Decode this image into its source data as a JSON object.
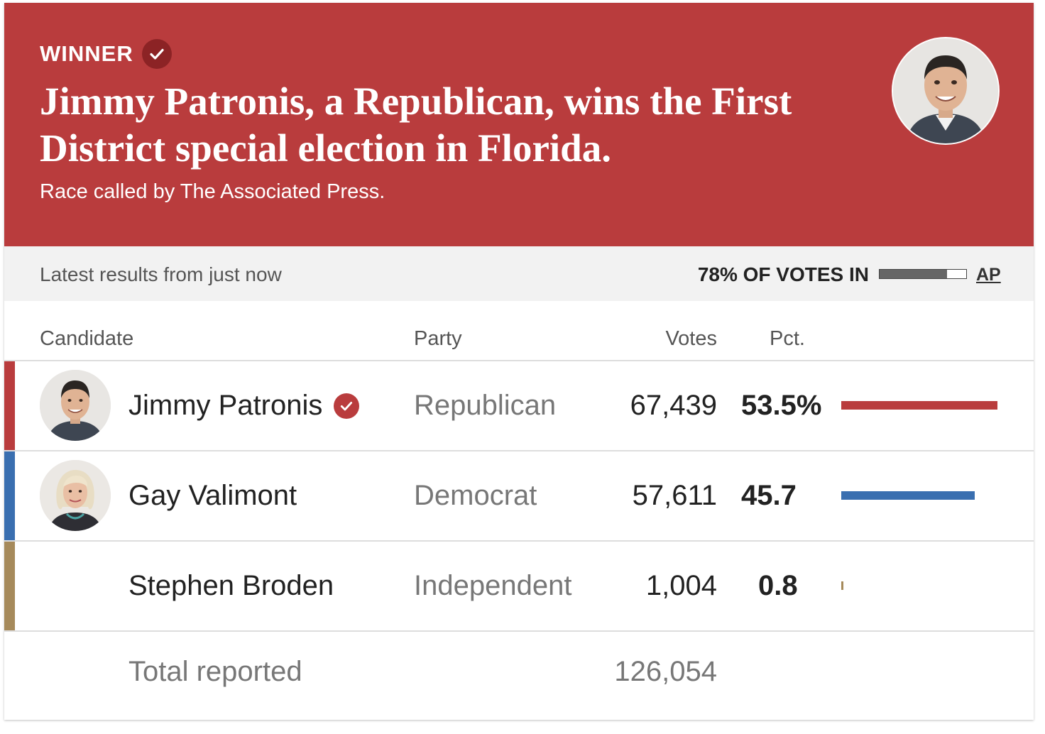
{
  "banner": {
    "winner_label": "WINNER",
    "headline": "Jimmy Patronis, a Republican, wins the First District special election in Florida.",
    "subhead": "Race called by The Associated Press.",
    "background_color": "#b93c3d"
  },
  "status": {
    "latest": "Latest results from just now",
    "votes_in_label": "78% OF VOTES IN",
    "votes_in_fraction": 0.78,
    "source_link": "AP"
  },
  "table": {
    "headers": {
      "candidate": "Candidate",
      "party": "Party",
      "votes": "Votes",
      "pct": "Pct."
    },
    "rows": [
      {
        "name": "Jimmy Patronis",
        "party": "Republican",
        "votes": "67,439",
        "pct": "53.5%",
        "pct_value": 53.5,
        "winner": true,
        "has_photo": true,
        "color": "#b93c3d"
      },
      {
        "name": "Gay Valimont",
        "party": "Democrat",
        "votes": "57,611",
        "pct": "45.7",
        "pct_value": 45.7,
        "winner": false,
        "has_photo": true,
        "color": "#3a6fb0"
      },
      {
        "name": "Stephen Broden",
        "party": "Independent",
        "votes": "1,004",
        "pct": "0.8",
        "pct_value": 0.8,
        "winner": false,
        "has_photo": false,
        "color": "#a68a5b"
      }
    ],
    "total_label": "Total reported",
    "total_votes": "126,054"
  },
  "icons": {
    "winner_check": "check-circle-icon",
    "candidate_photo": "avatar"
  }
}
